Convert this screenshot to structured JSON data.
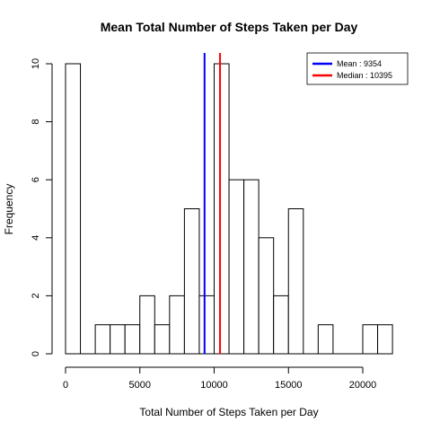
{
  "chart_data": {
    "type": "bar",
    "title": "Mean Total Number of Steps Taken per Day",
    "xlabel": "Total Number of Steps Taken per Day",
    "ylabel": "Frequency",
    "bin_width": 1000,
    "bins_start": [
      0,
      1000,
      2000,
      3000,
      4000,
      5000,
      6000,
      7000,
      8000,
      9000,
      10000,
      11000,
      12000,
      13000,
      14000,
      15000,
      16000,
      17000,
      18000,
      19000,
      20000,
      21000
    ],
    "values": [
      10,
      0,
      1,
      1,
      1,
      2,
      1,
      2,
      5,
      2,
      10,
      6,
      6,
      4,
      2,
      5,
      0,
      1,
      0,
      0,
      1,
      1
    ],
    "xlim": [
      0,
      22000
    ],
    "ylim": [
      0,
      10
    ],
    "x_ticks": [
      0,
      5000,
      10000,
      15000,
      20000
    ],
    "y_ticks": [
      0,
      2,
      4,
      6,
      8,
      10
    ],
    "grid": false,
    "lines": [
      {
        "name": "Mean",
        "value": 9354,
        "color": "#0000ff"
      },
      {
        "name": "Median",
        "value": 10395,
        "color": "#ff0000"
      }
    ],
    "legend": {
      "placement": "top-right",
      "entries": [
        {
          "label": "Mean :   9354",
          "color": "#0000ff"
        },
        {
          "label": "Median :  10395",
          "color": "#ff0000"
        }
      ]
    }
  }
}
